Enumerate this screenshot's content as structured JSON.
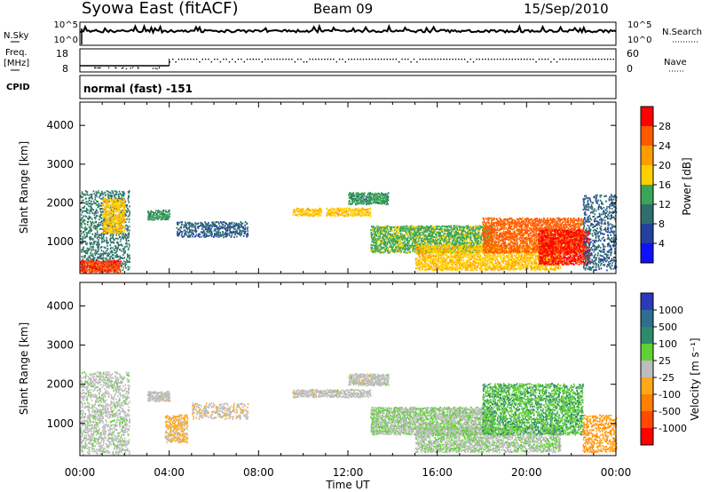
{
  "header": {
    "station": "Syowa East (fitACF)",
    "beam": "Beam 09",
    "date": "15/Sep/2010"
  },
  "top_panels": {
    "nsky_label": "N.Sky",
    "nsearch_label": "N.Search",
    "freq_label_1": "Freq.",
    "freq_label_2": "[MHz]",
    "nave_label": "Nave",
    "cpid_label": "CPID",
    "cpid_value": "normal (fast) -151",
    "noise_left_ticks": [
      "10^5",
      "10^0"
    ],
    "noise_right_ticks": [
      "10^5",
      "10^0"
    ],
    "freq_ticks": [
      "18",
      "8"
    ],
    "nave_ticks": [
      "60",
      "0"
    ]
  },
  "colorbars": {
    "power": {
      "label": "Power [dB]",
      "ticks": [
        "28",
        "24",
        "20",
        "16",
        "12",
        "8",
        "4"
      ],
      "colors": [
        "#ff0000",
        "#ff5a00",
        "#ff9c00",
        "#ffd000",
        "#3aa556",
        "#2e6e6e",
        "#2440a0",
        "#1010ff"
      ]
    },
    "velocity": {
      "label": "Velocity [m s⁻¹]",
      "ticks": [
        "1000",
        "500",
        "100",
        "25",
        "-25",
        "-100",
        "-500",
        "-1000"
      ],
      "colors": [
        "#2a3ab8",
        "#2e6e8e",
        "#2d8a6a",
        "#5fd035",
        "#bdbdbd",
        "#ffa81a",
        "#ff7f00",
        "#ff4a00",
        "#ff0000"
      ]
    }
  },
  "axes": {
    "ylabel": "Slant Range [km]",
    "yticks": [
      "4000",
      "3000",
      "2000",
      "1000"
    ],
    "xlabel": "Time UT",
    "xticks": [
      "00:00",
      "04:00",
      "08:00",
      "12:00",
      "16:00",
      "20:00",
      "00:00"
    ]
  },
  "chart_data": [
    {
      "type": "heatmap",
      "title": "",
      "xlabel": "",
      "ylabel": "Slant Range [km]",
      "x_range_hours": [
        0,
        24
      ],
      "ylim": [
        180,
        4600
      ],
      "colorbar_label": "Power [dB]",
      "color_range": [
        0,
        30
      ],
      "features": [
        {
          "t0": 0.0,
          "t1": 2.2,
          "r0": 250,
          "r1": 2300,
          "value": 10,
          "density": 0.35
        },
        {
          "t0": 0.0,
          "t1": 1.8,
          "r0": 200,
          "r1": 500,
          "value": 26,
          "density": 0.9
        },
        {
          "t0": 1.0,
          "t1": 2.0,
          "r0": 1200,
          "r1": 2100,
          "value": 18,
          "density": 0.7
        },
        {
          "t0": 3.0,
          "t1": 4.0,
          "r0": 1550,
          "r1": 1800,
          "value": 12,
          "density": 0.8
        },
        {
          "t0": 4.3,
          "t1": 7.5,
          "r0": 1100,
          "r1": 1500,
          "value": 8,
          "density": 0.5
        },
        {
          "t0": 9.5,
          "t1": 10.8,
          "r0": 1650,
          "r1": 1850,
          "value": 18,
          "density": 0.85
        },
        {
          "t0": 11.0,
          "t1": 13.0,
          "r0": 1650,
          "r1": 1850,
          "value": 18,
          "density": 0.85
        },
        {
          "t0": 12.0,
          "t1": 13.8,
          "r0": 1950,
          "r1": 2250,
          "value": 12,
          "density": 0.8
        },
        {
          "t0": 13.0,
          "t1": 18.5,
          "r0": 700,
          "r1": 1400,
          "value": 14,
          "density": 0.75
        },
        {
          "t0": 15.0,
          "t1": 21.5,
          "r0": 250,
          "r1": 900,
          "value": 18,
          "density": 0.7
        },
        {
          "t0": 18.0,
          "t1": 22.5,
          "r0": 700,
          "r1": 1600,
          "value": 24,
          "density": 0.7
        },
        {
          "t0": 20.5,
          "t1": 22.8,
          "r0": 400,
          "r1": 1300,
          "value": 27,
          "density": 0.75
        },
        {
          "t0": 22.5,
          "t1": 24.0,
          "r0": 250,
          "r1": 2200,
          "value": 8,
          "density": 0.35
        }
      ]
    },
    {
      "type": "heatmap",
      "title": "",
      "xlabel": "Time UT",
      "ylabel": "Slant Range [km]",
      "x_range_hours": [
        0,
        24
      ],
      "ylim": [
        180,
        4600
      ],
      "colorbar_label": "Velocity [m s⁻¹]",
      "color_range": [
        -1000,
        1000
      ],
      "features": [
        {
          "t0": 0.0,
          "t1": 2.2,
          "r0": 200,
          "r1": 2300,
          "value": 40,
          "density": 0.4
        },
        {
          "t0": 3.0,
          "t1": 4.0,
          "r0": 1550,
          "r1": 1800,
          "value": 0,
          "density": 0.8
        },
        {
          "t0": 3.8,
          "t1": 4.8,
          "r0": 500,
          "r1": 1200,
          "value": -150,
          "density": 0.6
        },
        {
          "t0": 5.0,
          "t1": 7.5,
          "r0": 1100,
          "r1": 1500,
          "value": -60,
          "density": 0.4
        },
        {
          "t0": 9.5,
          "t1": 13.0,
          "r0": 1650,
          "r1": 1850,
          "value": 0,
          "density": 0.85
        },
        {
          "t0": 12.0,
          "t1": 13.8,
          "r0": 1950,
          "r1": 2250,
          "value": 0,
          "density": 0.8
        },
        {
          "t0": 13.0,
          "t1": 18.5,
          "r0": 700,
          "r1": 1400,
          "value": 90,
          "density": 0.75
        },
        {
          "t0": 15.0,
          "t1": 21.5,
          "r0": 250,
          "r1": 900,
          "value": 70,
          "density": 0.65
        },
        {
          "t0": 18.0,
          "t1": 22.5,
          "r0": 700,
          "r1": 2000,
          "value": 300,
          "density": 0.55
        },
        {
          "t0": 22.5,
          "t1": 24.0,
          "r0": 250,
          "r1": 1200,
          "value": -300,
          "density": 0.45
        }
      ]
    }
  ]
}
